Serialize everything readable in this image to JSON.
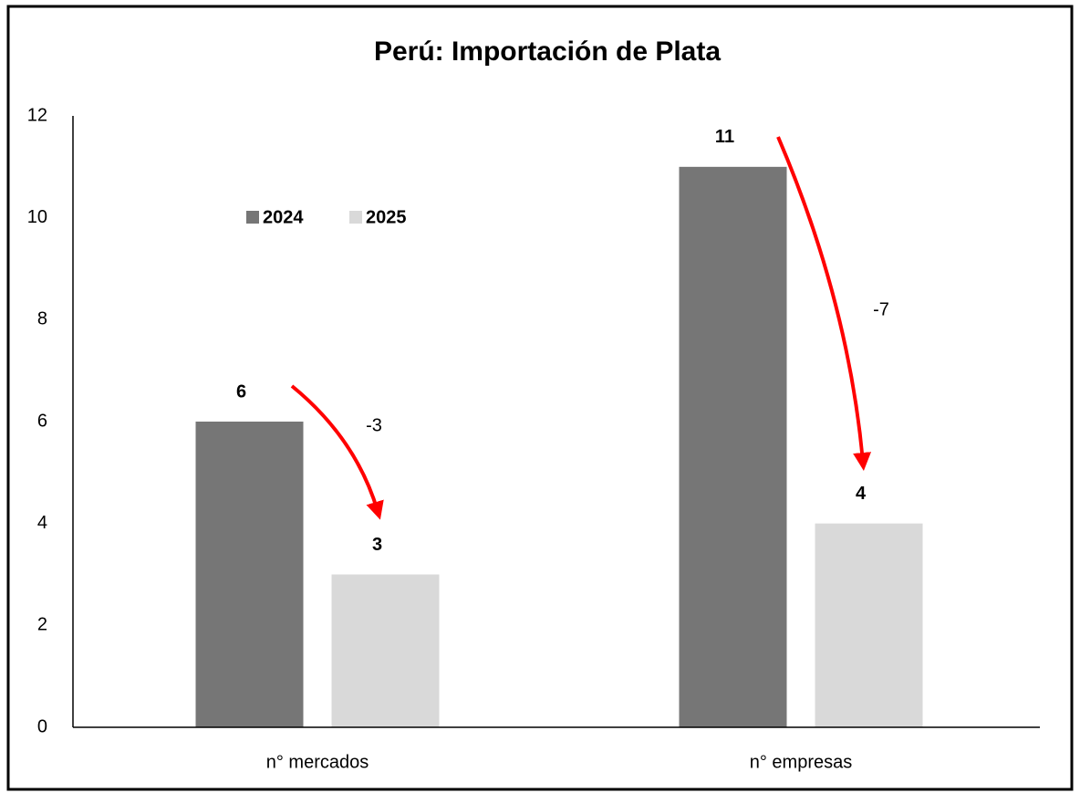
{
  "chart_data": {
    "type": "bar",
    "title": "Perú: Importación de Plata",
    "categories": [
      "n° mercados",
      "n° empresas"
    ],
    "series": [
      {
        "name": "2024",
        "color": "#767676",
        "values": [
          6,
          11
        ]
      },
      {
        "name": "2025",
        "color": "#d9d9d9",
        "values": [
          3,
          4
        ]
      }
    ],
    "ylim": [
      0,
      12
    ],
    "yticks": [
      0,
      2,
      4,
      6,
      8,
      10,
      12
    ],
    "grid": false,
    "legend": "upper left",
    "annotations": [
      "-3",
      "-7"
    ]
  }
}
